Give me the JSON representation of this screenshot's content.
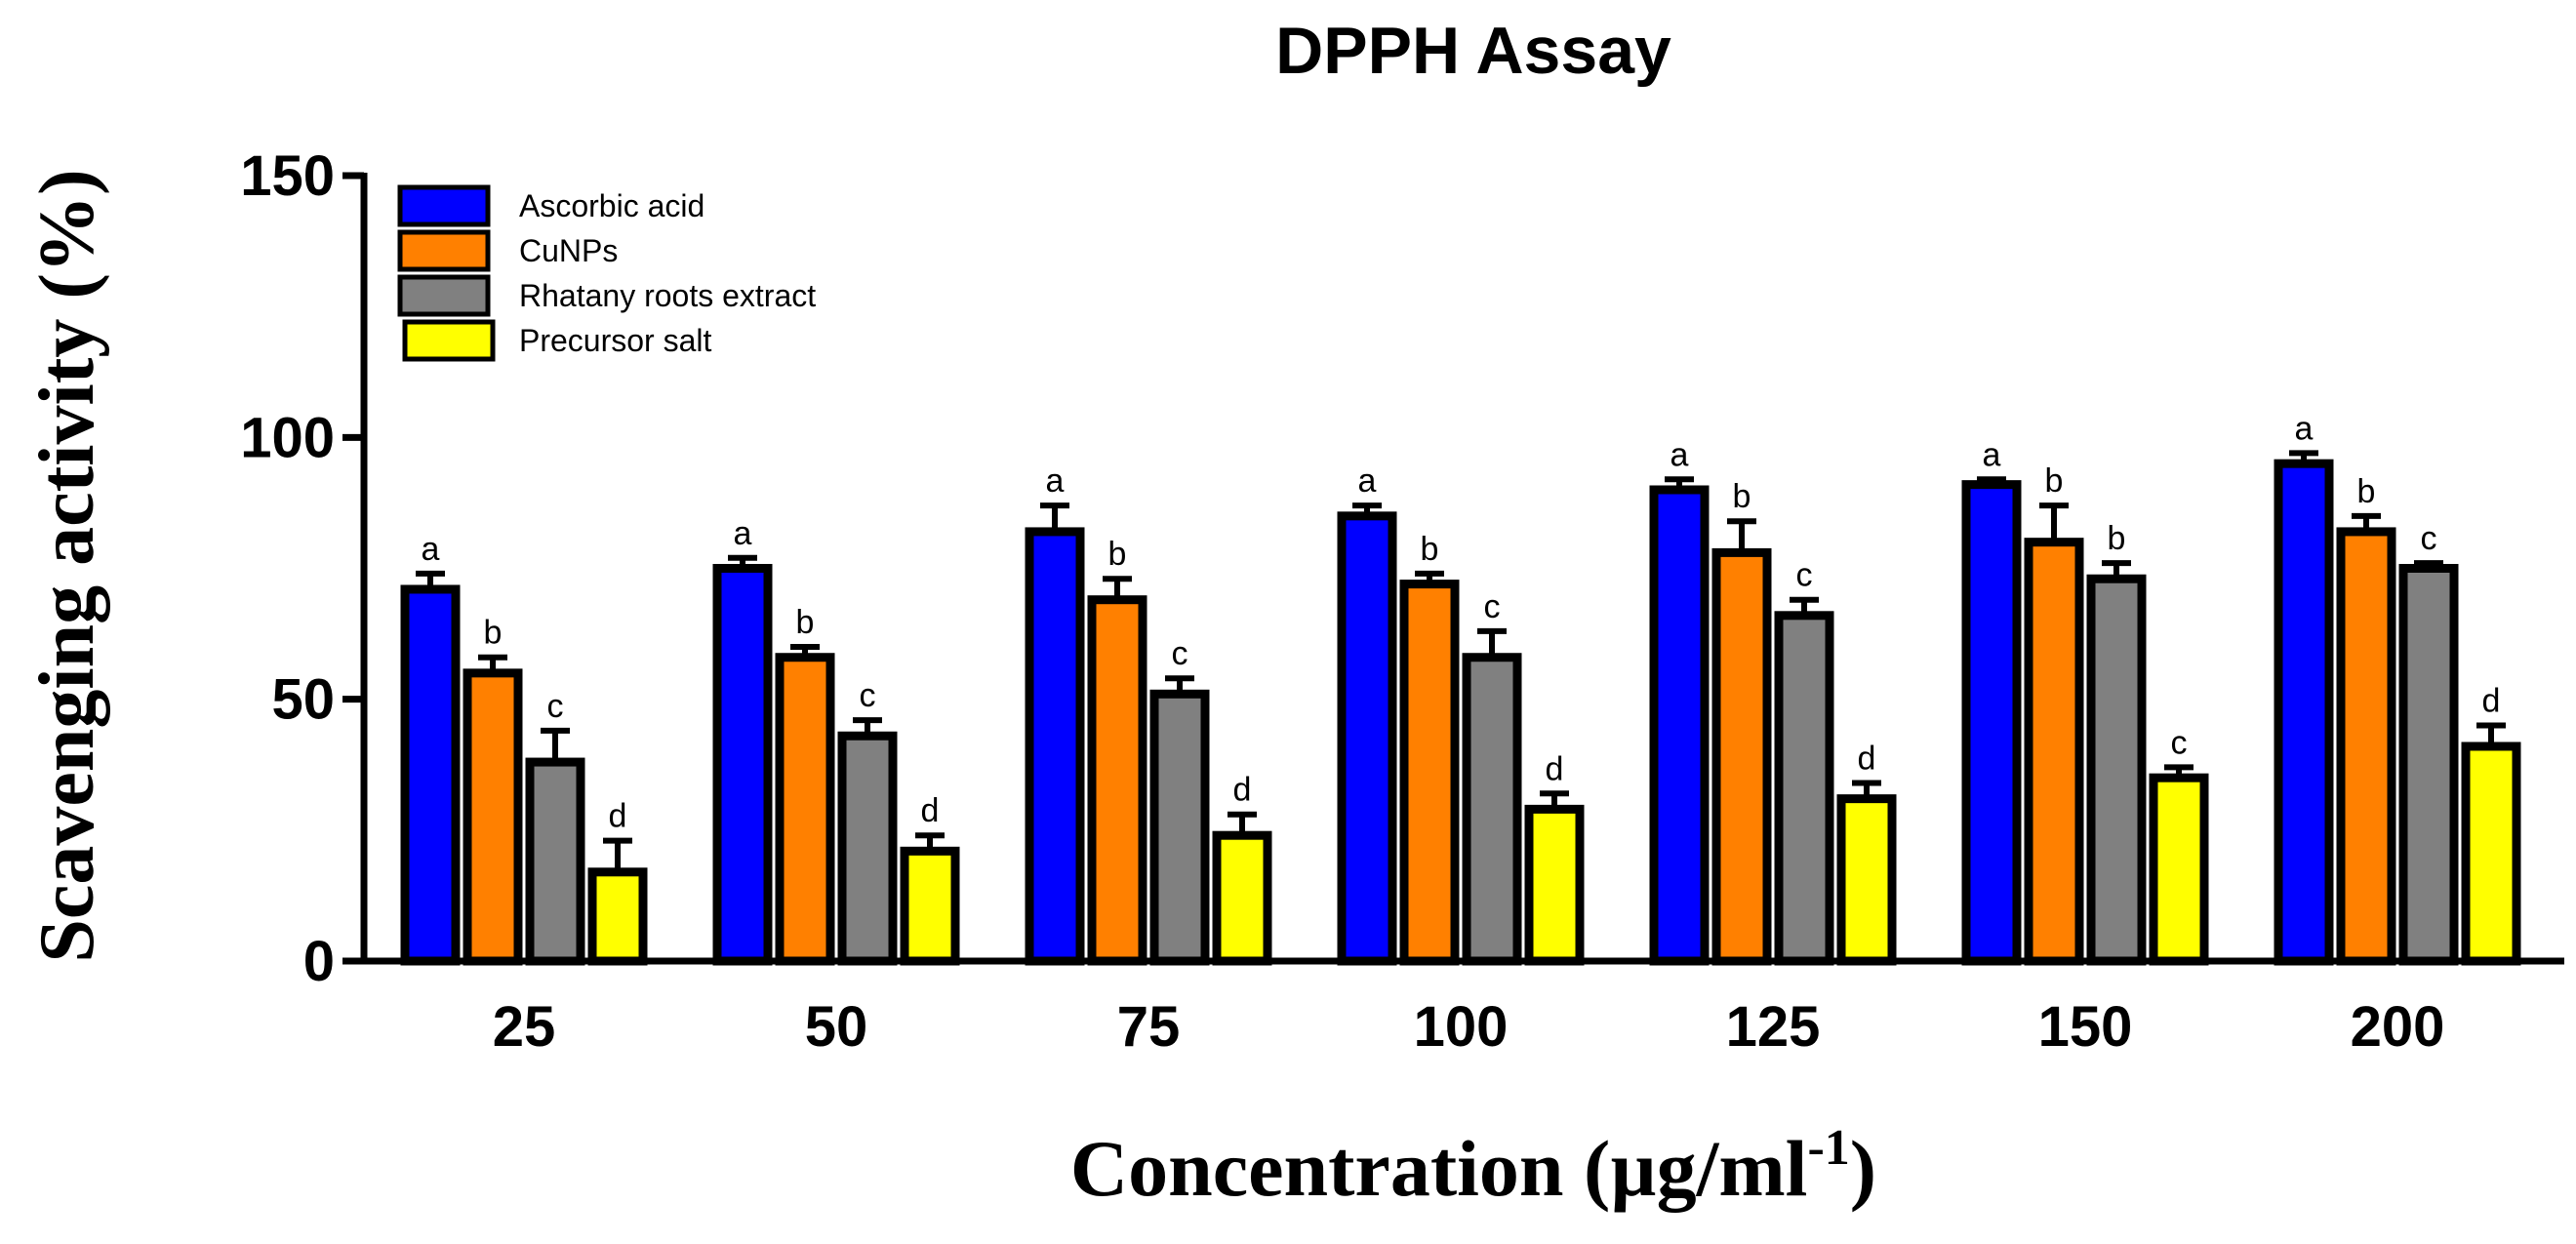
{
  "chart_data": {
    "type": "bar",
    "title": "DPPH Assay",
    "xlabel": "Concentration (µg/ml",
    "xlabel_superscript": "-1",
    "xlabel_suffix": ")",
    "ylabel": "Scavenging activity (%)",
    "ylim": [
      0,
      150
    ],
    "yticks": [
      0,
      50,
      100,
      150
    ],
    "categories": [
      "25",
      "50",
      "75",
      "100",
      "125",
      "150",
      "200"
    ],
    "series": [
      {
        "name": "Ascorbic acid",
        "color": "#0000FF",
        "values": [
          71,
          75,
          82,
          85,
          90,
          91,
          95
        ],
        "errors": [
          3,
          2,
          5,
          2,
          2,
          1,
          2
        ],
        "letters": [
          "a",
          "a",
          "a",
          "a",
          "a",
          "a",
          "a"
        ]
      },
      {
        "name": "CuNPs",
        "color": "#FF8000",
        "values": [
          55,
          58,
          69,
          72,
          78,
          80,
          82
        ],
        "errors": [
          3,
          2,
          4,
          2,
          6,
          7,
          3
        ],
        "letters": [
          "b",
          "b",
          "b",
          "b",
          "b",
          "b",
          "b"
        ]
      },
      {
        "name": "Rhatany roots extract",
        "color": "#808080",
        "values": [
          38,
          43,
          51,
          58,
          66,
          73,
          75
        ],
        "errors": [
          6,
          3,
          3,
          5,
          3,
          3,
          1
        ],
        "letters": [
          "c",
          "c",
          "c",
          "c",
          "c",
          "b",
          "c"
        ]
      },
      {
        "name": "Precursor salt",
        "color": "#FFFF00",
        "values": [
          17,
          21,
          24,
          29,
          31,
          35,
          41
        ],
        "errors": [
          6,
          3,
          4,
          3,
          3,
          2,
          4
        ],
        "letters": [
          "d",
          "d",
          "d",
          "d",
          "d",
          "c",
          "d"
        ]
      }
    ],
    "legend_position": "top-left"
  }
}
